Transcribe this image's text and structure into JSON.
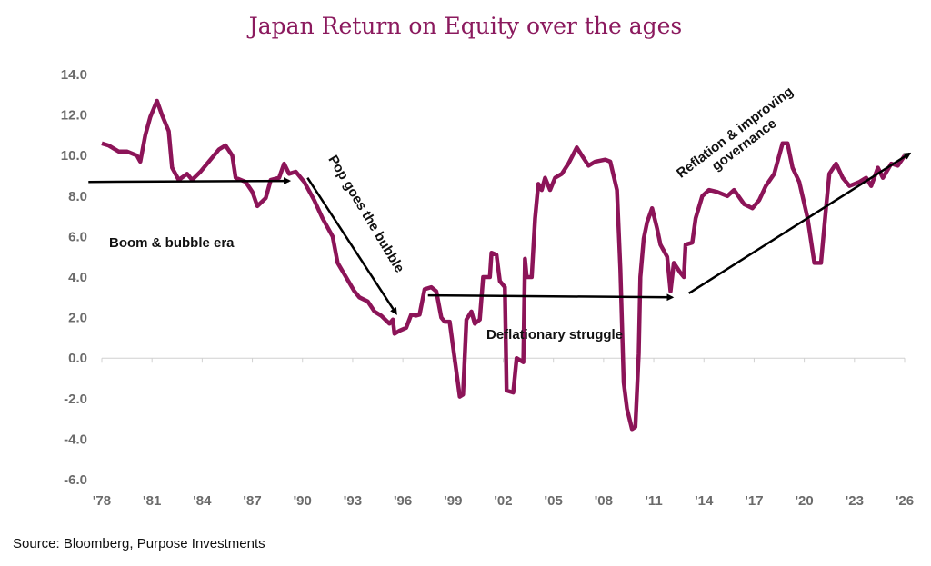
{
  "chart_data": {
    "type": "line",
    "title": "Japan Return on Equity over the ages",
    "xlabel": "",
    "ylabel": "",
    "xlim": [
      1978,
      2026
    ],
    "ylim": [
      -6,
      14
    ],
    "grid": "zero line only",
    "legend": "none",
    "y_ticks": [
      "14.0",
      "12.0",
      "10.0",
      "8.0",
      "6.0",
      "4.0",
      "2.0",
      "0.0",
      "-2.0",
      "-4.0",
      "-6.0"
    ],
    "x_ticks": [
      "'78",
      "'81",
      "'84",
      "'87",
      "'90",
      "'93",
      "'96",
      "'99",
      "'02",
      "'05",
      "'08",
      "'11",
      "'14",
      "'17",
      "'20",
      "'23",
      "'26"
    ],
    "series_color": "#8c1458",
    "series": [
      {
        "values": [
          [
            1978.0,
            10.6
          ],
          [
            1978.4,
            10.5
          ],
          [
            1979.0,
            10.2
          ],
          [
            1979.5,
            10.2
          ],
          [
            1980.1,
            10.0
          ],
          [
            1980.3,
            9.7
          ],
          [
            1980.6,
            11.0
          ],
          [
            1980.9,
            11.9
          ],
          [
            1981.3,
            12.7
          ],
          [
            1981.6,
            12.0
          ],
          [
            1982.0,
            11.2
          ],
          [
            1982.2,
            9.4
          ],
          [
            1982.6,
            8.8
          ],
          [
            1983.1,
            9.1
          ],
          [
            1983.4,
            8.8
          ],
          [
            1983.9,
            9.2
          ],
          [
            1984.4,
            9.7
          ],
          [
            1985.0,
            10.3
          ],
          [
            1985.4,
            10.5
          ],
          [
            1985.8,
            10.0
          ],
          [
            1986.0,
            8.9
          ],
          [
            1986.6,
            8.7
          ],
          [
            1987.0,
            8.2
          ],
          [
            1987.3,
            7.5
          ],
          [
            1987.8,
            7.9
          ],
          [
            1988.1,
            8.8
          ],
          [
            1988.6,
            8.9
          ],
          [
            1988.9,
            9.6
          ],
          [
            1989.2,
            9.1
          ],
          [
            1989.6,
            9.2
          ],
          [
            1990.1,
            8.7
          ],
          [
            1990.7,
            7.8
          ],
          [
            1991.2,
            6.9
          ],
          [
            1991.8,
            6.0
          ],
          [
            1992.1,
            4.7
          ],
          [
            1992.6,
            4.0
          ],
          [
            1993.1,
            3.3
          ],
          [
            1993.4,
            3.0
          ],
          [
            1993.9,
            2.8
          ],
          [
            1994.3,
            2.3
          ],
          [
            1994.7,
            2.1
          ],
          [
            1995.2,
            1.7
          ],
          [
            1995.4,
            1.9
          ],
          [
            1995.5,
            1.2
          ],
          [
            1995.8,
            1.35
          ],
          [
            1996.2,
            1.5
          ],
          [
            1996.5,
            2.15
          ],
          [
            1996.8,
            2.1
          ],
          [
            1997.0,
            2.15
          ],
          [
            1997.3,
            3.4
          ],
          [
            1997.7,
            3.5
          ],
          [
            1998.0,
            3.3
          ],
          [
            1998.3,
            2.0
          ],
          [
            1998.5,
            1.8
          ],
          [
            1998.8,
            1.8
          ],
          [
            1999.4,
            -1.9
          ],
          [
            1999.6,
            -1.8
          ],
          [
            1999.8,
            1.9
          ],
          [
            2000.1,
            2.3
          ],
          [
            2000.3,
            1.7
          ],
          [
            2000.6,
            1.9
          ],
          [
            2000.8,
            4.0
          ],
          [
            2001.2,
            4.0
          ],
          [
            2001.3,
            5.2
          ],
          [
            2001.6,
            5.1
          ],
          [
            2001.8,
            3.8
          ],
          [
            2002.1,
            3.5
          ],
          [
            2002.2,
            -1.6
          ],
          [
            2002.6,
            -1.7
          ],
          [
            2002.8,
            0.0
          ],
          [
            2003.2,
            -0.2
          ],
          [
            2003.3,
            4.9
          ],
          [
            2003.4,
            4.0
          ],
          [
            2003.7,
            4.0
          ],
          [
            2003.9,
            6.9
          ],
          [
            2004.1,
            8.6
          ],
          [
            2004.3,
            8.3
          ],
          [
            2004.5,
            8.9
          ],
          [
            2004.8,
            8.3
          ],
          [
            2005.1,
            8.9
          ],
          [
            2005.5,
            9.1
          ],
          [
            2005.9,
            9.6
          ],
          [
            2006.4,
            10.4
          ],
          [
            2006.7,
            10.0
          ],
          [
            2007.1,
            9.5
          ],
          [
            2007.5,
            9.7
          ],
          [
            2008.1,
            9.8
          ],
          [
            2008.4,
            9.7
          ],
          [
            2008.8,
            8.3
          ],
          [
            2009.0,
            4.4
          ],
          [
            2009.2,
            -1.2
          ],
          [
            2009.4,
            -2.5
          ],
          [
            2009.7,
            -3.5
          ],
          [
            2009.9,
            -3.4
          ],
          [
            2010.1,
            0.2
          ],
          [
            2010.2,
            4.0
          ],
          [
            2010.4,
            5.9
          ],
          [
            2010.6,
            6.7
          ],
          [
            2010.9,
            7.4
          ],
          [
            2011.2,
            6.4
          ],
          [
            2011.4,
            5.6
          ],
          [
            2011.8,
            5.0
          ],
          [
            2012.0,
            3.3
          ],
          [
            2012.2,
            4.7
          ],
          [
            2012.6,
            4.2
          ],
          [
            2012.8,
            4.0
          ],
          [
            2012.9,
            5.6
          ],
          [
            2013.3,
            5.7
          ],
          [
            2013.5,
            6.9
          ],
          [
            2013.9,
            8.0
          ],
          [
            2014.3,
            8.3
          ],
          [
            2014.8,
            8.2
          ],
          [
            2015.4,
            8.0
          ],
          [
            2015.8,
            8.3
          ],
          [
            2016.4,
            7.6
          ],
          [
            2016.9,
            7.4
          ],
          [
            2017.3,
            7.8
          ],
          [
            2017.7,
            8.5
          ],
          [
            2018.2,
            9.1
          ],
          [
            2018.7,
            10.6
          ],
          [
            2019.0,
            10.6
          ],
          [
            2019.3,
            9.4
          ],
          [
            2019.7,
            8.7
          ],
          [
            2020.2,
            6.9
          ],
          [
            2020.6,
            4.7
          ],
          [
            2021.0,
            4.7
          ],
          [
            2021.3,
            7.4
          ],
          [
            2021.5,
            9.1
          ],
          [
            2021.9,
            9.6
          ],
          [
            2022.3,
            8.9
          ],
          [
            2022.7,
            8.5
          ],
          [
            2023.3,
            8.7
          ],
          [
            2023.7,
            8.9
          ],
          [
            2024.0,
            8.5
          ],
          [
            2024.4,
            9.4
          ],
          [
            2024.7,
            8.9
          ],
          [
            2025.2,
            9.6
          ],
          [
            2025.6,
            9.5
          ],
          [
            2026.0,
            10.0
          ]
        ]
      }
    ],
    "annotations": [
      {
        "text": "Boom & bubble era",
        "arrow": [
          [
            1977.2,
            8.7
          ],
          [
            1989.2,
            8.75
          ]
        ]
      },
      {
        "text": "Pop goes the bubble",
        "arrow": [
          [
            1990.3,
            8.9
          ],
          [
            1995.6,
            2.2
          ]
        ]
      },
      {
        "text": "Deflationary struggle",
        "arrow": [
          [
            1997.5,
            3.1
          ],
          [
            2012.1,
            3.0
          ]
        ]
      },
      {
        "text": "Reflation & improving governance",
        "line1": "Reflation & improving",
        "line2": "governance",
        "arrow": [
          [
            2013.1,
            3.2
          ],
          [
            2026.3,
            10.1
          ]
        ]
      }
    ]
  },
  "source": "Source: Bloomberg, Purpose Investments"
}
